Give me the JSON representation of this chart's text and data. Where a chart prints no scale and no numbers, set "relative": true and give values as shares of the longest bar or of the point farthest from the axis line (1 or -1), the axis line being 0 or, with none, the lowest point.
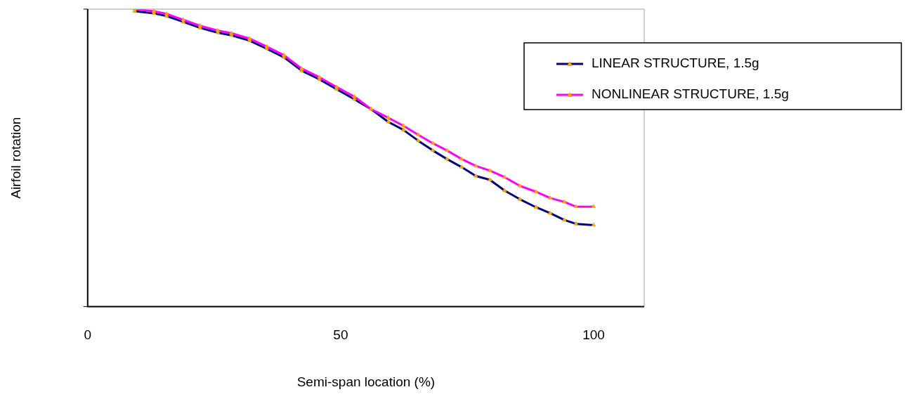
{
  "chart_data": {
    "type": "line",
    "relative": true,
    "xlabel": "Semi-span location (%)",
    "ylabel": "Airfoil rotation",
    "x": [
      9.3,
      13.1,
      15.6,
      18.9,
      22.2,
      25.7,
      28.4,
      32,
      35.4,
      38.8,
      42.3,
      45.8,
      49.2,
      52.7,
      56,
      59.4,
      62.4,
      65.3,
      68.2,
      71,
      73.9,
      76.7,
      79.5,
      82.4,
      85.4,
      88.6,
      91.4,
      94.2,
      96.5,
      100
    ],
    "xlim": [
      0,
      110
    ],
    "xticks": [
      0,
      50,
      100
    ],
    "grid": false,
    "legend": "right",
    "marker": "triangle",
    "line_style": "solid",
    "series": [
      {
        "name": "LINEAR STRUCTURE, 1.5g",
        "color": "#000080",
        "values": [
          0.993,
          0.986,
          0.977,
          0.957,
          0.937,
          0.921,
          0.912,
          0.894,
          0.867,
          0.838,
          0.793,
          0.764,
          0.731,
          0.697,
          0.664,
          0.621,
          0.594,
          0.558,
          0.525,
          0.496,
          0.469,
          0.439,
          0.426,
          0.39,
          0.361,
          0.334,
          0.314,
          0.291,
          0.278,
          0.274
        ]
      },
      {
        "name": "NONLINEAR STRUCTURE, 1.5g",
        "color": "#ff00ff",
        "values": [
          1,
          0.993,
          0.984,
          0.964,
          0.944,
          0.928,
          0.919,
          0.901,
          0.874,
          0.845,
          0.8,
          0.771,
          0.738,
          0.706,
          0.664,
          0.635,
          0.608,
          0.578,
          0.549,
          0.525,
          0.496,
          0.473,
          0.457,
          0.435,
          0.406,
          0.386,
          0.365,
          0.352,
          0.336,
          0.336
        ]
      }
    ]
  }
}
